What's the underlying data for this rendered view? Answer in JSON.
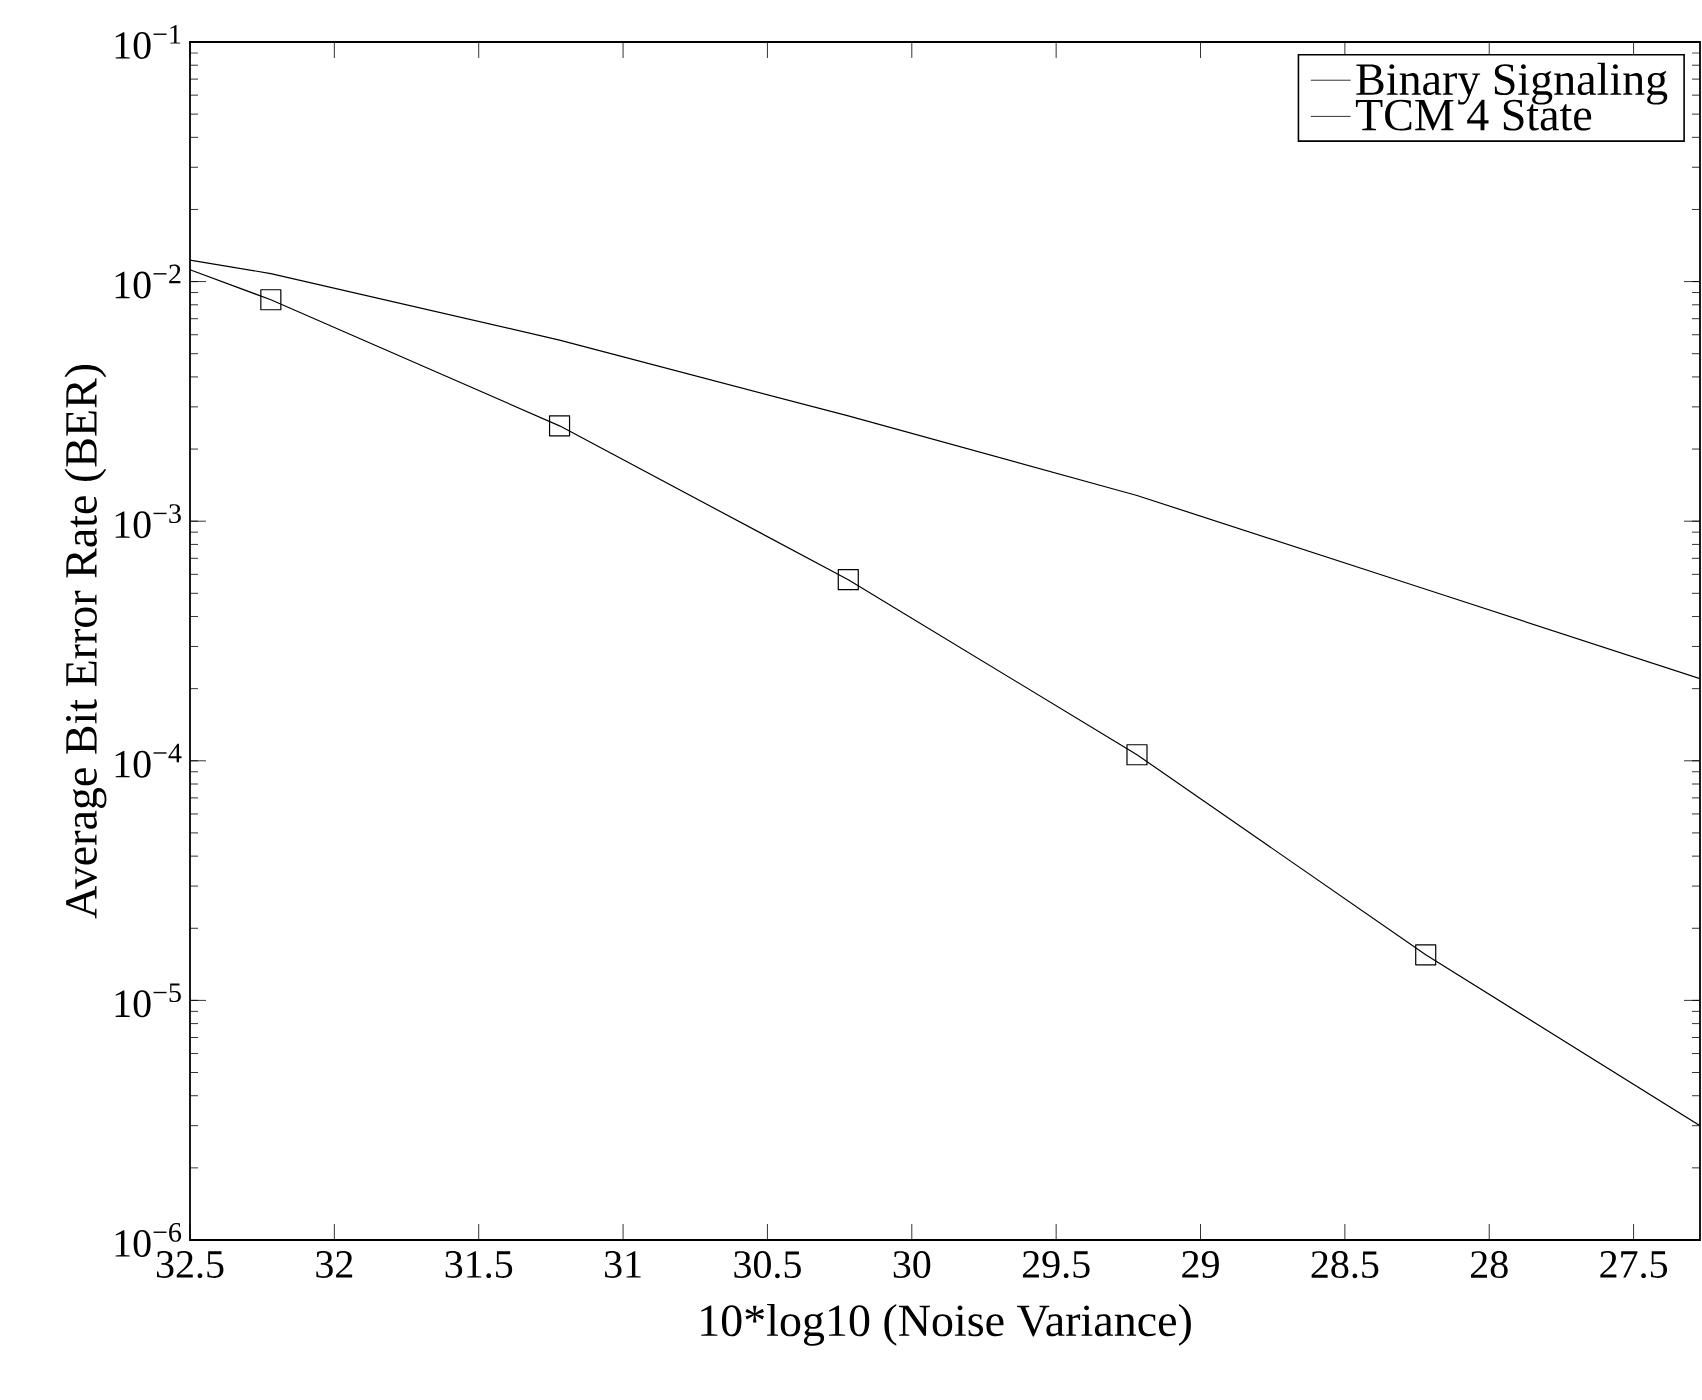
{
  "chart_data": {
    "type": "line",
    "xlabel": "10*log10 (Noise Variance)",
    "ylabel": "Average Bit Error Rate (BER)",
    "x": [
      32.5,
      32.22,
      31.22,
      30.22,
      29.22,
      28.22,
      27.27
    ],
    "series": [
      {
        "name": "Binary Signaling",
        "color": "#000000",
        "marker": "none",
        "values": [
          0.0123,
          0.0108,
          0.0057,
          0.00275,
          0.00128,
          0.00052,
          0.00022
        ]
      },
      {
        "name": "TCM 4 State",
        "color": "#000000",
        "marker": "square",
        "values": [
          0.0112,
          0.0084,
          0.0025,
          0.00057,
          0.000106,
          1.55e-05,
          3e-06
        ]
      }
    ],
    "xlim": [
      32.5,
      27.27
    ],
    "xticks": [
      32.5,
      32,
      31.5,
      31,
      30.5,
      30,
      29.5,
      29,
      28.5,
      28,
      27.5
    ],
    "ylim": [
      1e-06,
      0.1
    ],
    "yticks": [
      {
        "value": 1e-06,
        "label": "10$^{−6}$"
      },
      {
        "value": 1e-05,
        "label": "10$^{−5}$"
      },
      {
        "value": 0.0001,
        "label": "10$^{−4}$"
      },
      {
        "value": 0.001,
        "label": "10$^{−3}$"
      },
      {
        "value": 0.01,
        "label": "10$^{−2}$"
      },
      {
        "value": 0.1,
        "label": "10$^{−1}$"
      }
    ],
    "log": "y",
    "grid": false,
    "legend": "top right",
    "line_style": "solid"
  }
}
